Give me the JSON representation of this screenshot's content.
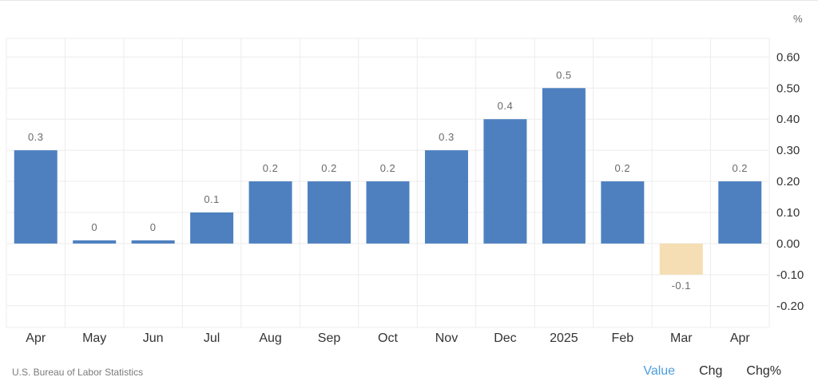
{
  "footer": {
    "source": "U.S. Bureau of Labor Statistics",
    "tabs": [
      {
        "label": "Value",
        "active": true
      },
      {
        "label": "Chg",
        "active": false
      },
      {
        "label": "Chg%",
        "active": false
      }
    ]
  },
  "colors": {
    "positive": "#4e80c0",
    "negative": "#f5deb3",
    "grid": "#ececec",
    "active_tab": "#4d9de0"
  },
  "chart_data": {
    "type": "bar",
    "unit": "%",
    "categories": [
      "Apr",
      "May",
      "Jun",
      "Jul",
      "Aug",
      "Sep",
      "Oct",
      "Nov",
      "Dec",
      "2025",
      "Feb",
      "Mar",
      "Apr"
    ],
    "values": [
      0.3,
      0,
      0,
      0.1,
      0.2,
      0.2,
      0.2,
      0.3,
      0.4,
      0.5,
      0.2,
      -0.1,
      0.2
    ],
    "data_labels": [
      "0.3",
      "0",
      "0",
      "0.1",
      "0.2",
      "0.2",
      "0.2",
      "0.3",
      "0.4",
      "0.5",
      "0.2",
      "-0.1",
      "0.2"
    ],
    "y_ticks": [
      "0.60",
      "0.50",
      "0.40",
      "0.30",
      "0.20",
      "0.10",
      "0.00",
      "-0.10",
      "-0.20"
    ],
    "y_tick_values": [
      0.6,
      0.5,
      0.4,
      0.3,
      0.2,
      0.1,
      0.0,
      -0.1,
      -0.2
    ],
    "ylim": [
      -0.27,
      0.66
    ],
    "grid": true,
    "y_axis_side": "right"
  }
}
